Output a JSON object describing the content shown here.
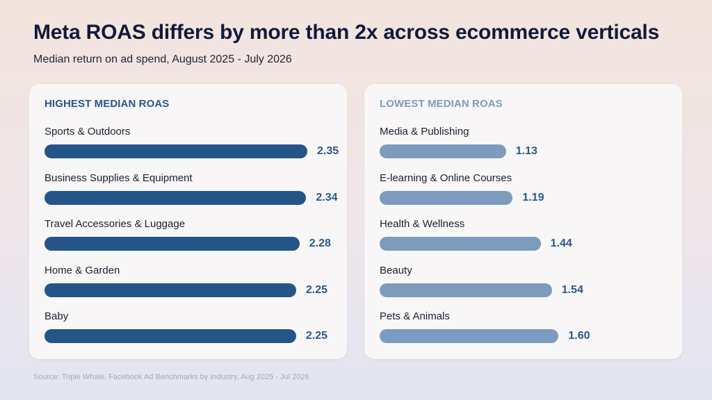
{
  "title": "Meta ROAS differs by more than 2x across ecommerce verticals",
  "subtitle": "Median return on ad spend, August 2025 - July 2026",
  "source": "Source: Triple Whale, Facebook Ad Benchmarks by Industry, Aug 2025 - Jul 2026",
  "colors": {
    "highest_bar": "#245588",
    "lowest_bar": "#7c9bbd",
    "value_text": "#2a588c"
  },
  "chart_data": [
    {
      "type": "bar",
      "orientation": "horizontal",
      "title": "HIGHEST MEDIAN ROAS",
      "categories": [
        "Sports & Outdoors",
        "Business Supplies & Equipment",
        "Travel Accessories & Luggage",
        "Home & Garden",
        "Baby"
      ],
      "values": [
        2.35,
        2.34,
        2.28,
        2.25,
        2.25
      ],
      "value_labels": [
        "2.35",
        "2.34",
        "2.28",
        "2.25",
        "2.25"
      ],
      "xlim": [
        0,
        2.35
      ],
      "grid": false
    },
    {
      "type": "bar",
      "orientation": "horizontal",
      "title": "LOWEST MEDIAN ROAS",
      "categories": [
        "Media & Publishing",
        "E-learning & Online Courses",
        "Health & Wellness",
        "Beauty",
        "Pets & Animals"
      ],
      "values": [
        1.13,
        1.19,
        1.44,
        1.54,
        1.6
      ],
      "value_labels": [
        "1.13",
        "1.19",
        "1.44",
        "1.54",
        "1.60"
      ],
      "xlim": [
        0,
        2.35
      ],
      "grid": false
    }
  ]
}
